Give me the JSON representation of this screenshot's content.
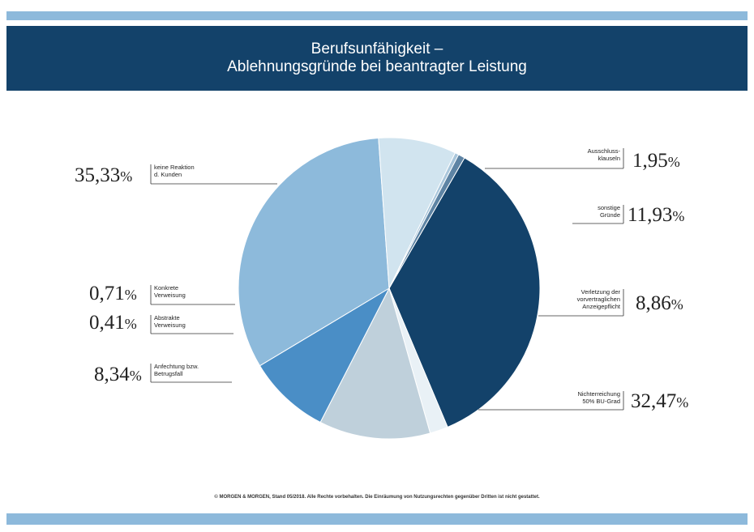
{
  "header": {
    "title_line1": "Berufsunfähigkeit –",
    "title_line2": "Ablehnungsgründe bei beantragter Leistung"
  },
  "footer": {
    "text": "© MORGEN & MORGEN, Stand 05/2018. Alle Rechte vorbehalten. Die Einräumung von Nutzungsrechten gegenüber Dritten ist nicht gestattet."
  },
  "colors": {
    "header_bg": "#13426a",
    "stripe": "#8db9db"
  },
  "chart_data": {
    "type": "pie",
    "title": "Berufsunfähigkeit – Ablehnungsgründe bei beantragter Leistung",
    "slices": [
      {
        "label": "keine Reaktion d. Kunden",
        "label_lines": [
          "keine Reaktion",
          "d. Kunden"
        ],
        "value": 35.33,
        "value_text": "35,33",
        "color": "#13426a"
      },
      {
        "label": "Ausschlussklauseln",
        "label_lines": [
          "Ausschluss-",
          "klauseln"
        ],
        "value": 1.95,
        "value_text": "1,95",
        "color": "#e9f1f6"
      },
      {
        "label": "sonstige Gründe",
        "label_lines": [
          "sonstige",
          "Gründe"
        ],
        "value": 11.93,
        "value_text": "11,93",
        "color": "#bfd0db"
      },
      {
        "label": "Verletzung der vorvertraglichen Anzeigepflicht",
        "label_lines": [
          "Verletzung der",
          "vorvertraglichen",
          "Anzeigepflicht"
        ],
        "value": 8.86,
        "value_text": "8,86",
        "color": "#4a8ec6"
      },
      {
        "label": "Nichterreichung 50% BU-Grad",
        "label_lines": [
          "Nichterreichung",
          "50% BU-Grad"
        ],
        "value": 32.47,
        "value_text": "32,47",
        "color": "#8dbadb"
      },
      {
        "label": "Anfechtung bzw. Betrugsfall",
        "label_lines": [
          "Anfechtung bzw.",
          "Betrugsfall"
        ],
        "value": 8.34,
        "value_text": "8,34",
        "color": "#d1e4ef"
      },
      {
        "label": "Abstrakte Verweisung",
        "label_lines": [
          "Abstrakte",
          "Verweisung"
        ],
        "value": 0.41,
        "value_text": "0,41",
        "color": "#a9c6db"
      },
      {
        "label": "Konkrete Verweisung",
        "label_lines": [
          "Konkrete",
          "Verweisung"
        ],
        "value": 0.71,
        "value_text": "0,71",
        "color": "#5e84a4"
      }
    ],
    "percent_sign": "%"
  }
}
